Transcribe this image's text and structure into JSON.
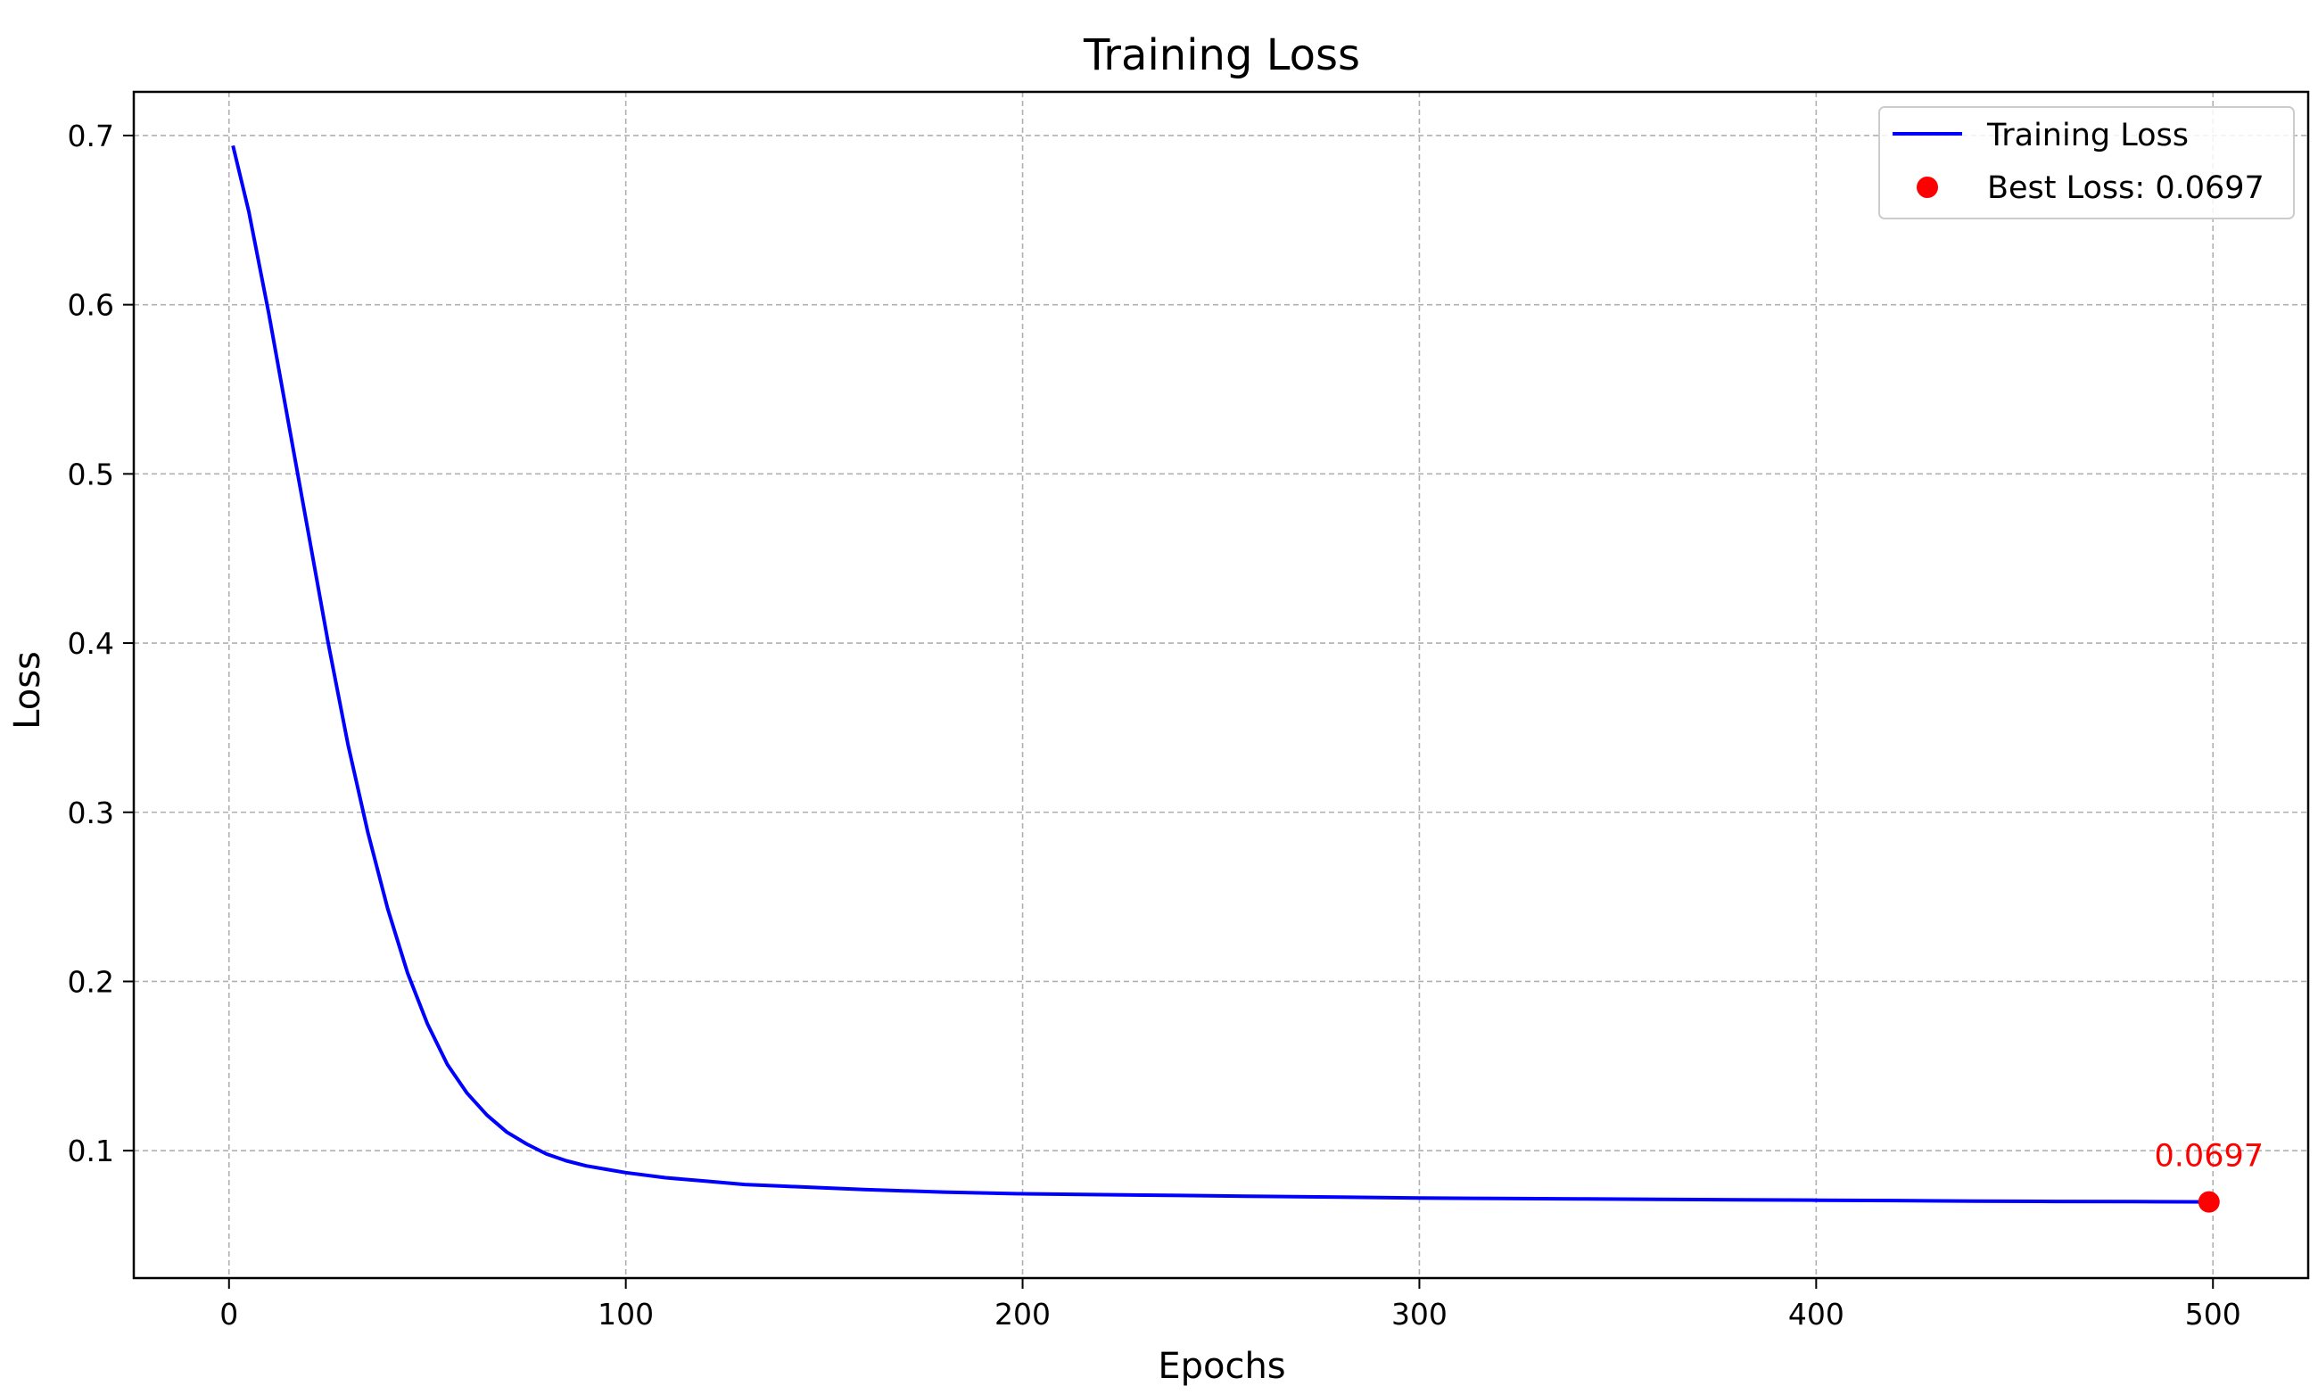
{
  "chart_data": {
    "type": "line",
    "title": "Training Loss",
    "xlabel": "Epochs",
    "ylabel": "Loss",
    "xlim": [
      -24,
      524
    ],
    "ylim": [
      0.0247,
      0.7258
    ],
    "xticks": [
      0,
      100,
      200,
      300,
      400,
      500
    ],
    "yticks": [
      0.1,
      0.2,
      0.3,
      0.4,
      0.5,
      0.6,
      0.7
    ],
    "grid": true,
    "legend_position": "top-right",
    "series": [
      {
        "name": "Training Loss",
        "color": "#0000ff",
        "x": [
          1,
          5,
          10,
          15,
          20,
          25,
          30,
          35,
          40,
          45,
          50,
          55,
          60,
          65,
          70,
          75,
          80,
          85,
          90,
          95,
          100,
          110,
          120,
          130,
          140,
          150,
          160,
          180,
          200,
          220,
          240,
          260,
          280,
          300,
          320,
          340,
          360,
          380,
          400,
          420,
          440,
          460,
          480,
          499
        ],
        "y": [
          0.694,
          0.655,
          0.595,
          0.53,
          0.465,
          0.4,
          0.34,
          0.288,
          0.243,
          0.205,
          0.175,
          0.151,
          0.134,
          0.121,
          0.111,
          0.104,
          0.098,
          0.094,
          0.091,
          0.089,
          0.087,
          0.084,
          0.082,
          0.08,
          0.079,
          0.078,
          0.077,
          0.0755,
          0.0745,
          0.074,
          0.0735,
          0.073,
          0.0725,
          0.072,
          0.0718,
          0.0715,
          0.0712,
          0.071,
          0.0707,
          0.0705,
          0.0702,
          0.07,
          0.0699,
          0.0697
        ]
      }
    ],
    "best_point": {
      "name": "Best Loss: 0.0697",
      "color": "#ff0000",
      "x": 499,
      "y": 0.0697,
      "label": "0.0697"
    }
  }
}
